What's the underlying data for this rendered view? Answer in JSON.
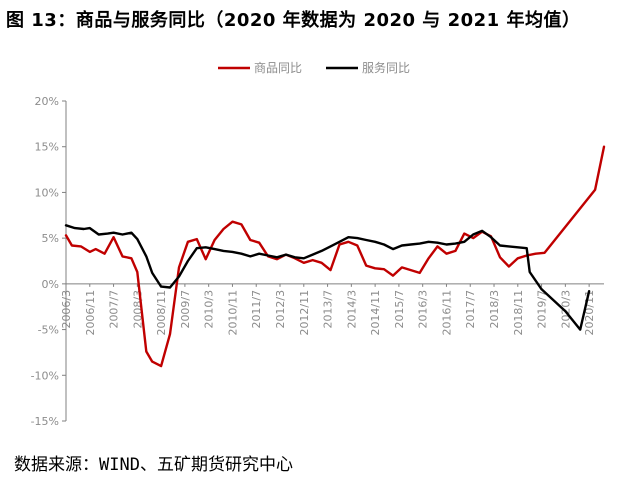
{
  "title": "图 13：商品与服务同比（2020 年数据为 2020 与 2021 年均值）",
  "source": "数据来源：WIND、五矿期货研究中心",
  "colors": {
    "goods": "#c00000",
    "services": "#000000",
    "axis": "#808080",
    "text": "#8c8c8c"
  },
  "chart_data": {
    "type": "line",
    "legend_position": "top-center",
    "grid": false,
    "ylim": [
      -15,
      20
    ],
    "yticks": [
      -15,
      -10,
      -5,
      0,
      5,
      10,
      15,
      20
    ],
    "ytick_labels": [
      "-15%",
      "-10%",
      "-5%",
      "0%",
      "5%",
      "10%",
      "15%",
      "20%"
    ],
    "xtick_labels": [
      "2006/3",
      "2006/11",
      "2007/7",
      "2008/3",
      "2008/11",
      "2009/7",
      "2010/3",
      "2010/11",
      "2011/7",
      "2012/3",
      "2012/11",
      "2013/7",
      "2014/3",
      "2014/11",
      "2015/7",
      "2016/3",
      "2016/11",
      "2017/7",
      "2018/3",
      "2018/11",
      "2019/7",
      "2020/3",
      "2020/11"
    ],
    "series": [
      {
        "name": "商品同比",
        "color": "#c00000",
        "points": [
          [
            "2006/3",
            5.3
          ],
          [
            "2006/5",
            4.2
          ],
          [
            "2006/8",
            4.1
          ],
          [
            "2006/11",
            3.5
          ],
          [
            "2007/1",
            3.8
          ],
          [
            "2007/4",
            3.3
          ],
          [
            "2007/7",
            5.1
          ],
          [
            "2007/10",
            3.0
          ],
          [
            "2008/1",
            2.8
          ],
          [
            "2008/3",
            1.3
          ],
          [
            "2008/6",
            -7.4
          ],
          [
            "2008/8",
            -8.5
          ],
          [
            "2008/11",
            -9.0
          ],
          [
            "2009/2",
            -5.5
          ],
          [
            "2009/5",
            1.8
          ],
          [
            "2009/8",
            4.6
          ],
          [
            "2009/11",
            4.9
          ],
          [
            "2010/2",
            2.7
          ],
          [
            "2010/5",
            4.8
          ],
          [
            "2010/8",
            6.0
          ],
          [
            "2010/11",
            6.8
          ],
          [
            "2011/2",
            6.5
          ],
          [
            "2011/5",
            4.8
          ],
          [
            "2011/8",
            4.5
          ],
          [
            "2011/11",
            3.0
          ],
          [
            "2012/2",
            2.7
          ],
          [
            "2012/5",
            3.2
          ],
          [
            "2012/8",
            2.8
          ],
          [
            "2012/11",
            2.3
          ],
          [
            "2013/2",
            2.6
          ],
          [
            "2013/5",
            2.3
          ],
          [
            "2013/8",
            1.5
          ],
          [
            "2013/11",
            4.3
          ],
          [
            "2014/2",
            4.6
          ],
          [
            "2014/5",
            4.2
          ],
          [
            "2014/8",
            2.0
          ],
          [
            "2014/11",
            1.7
          ],
          [
            "2015/2",
            1.6
          ],
          [
            "2015/5",
            0.9
          ],
          [
            "2015/8",
            1.8
          ],
          [
            "2015/11",
            1.5
          ],
          [
            "2016/2",
            1.2
          ],
          [
            "2016/5",
            2.8
          ],
          [
            "2016/8",
            4.1
          ],
          [
            "2016/11",
            3.3
          ],
          [
            "2017/2",
            3.6
          ],
          [
            "2017/5",
            5.5
          ],
          [
            "2017/8",
            5.0
          ],
          [
            "2017/11",
            5.7
          ],
          [
            "2018/2",
            5.2
          ],
          [
            "2018/5",
            2.9
          ],
          [
            "2018/8",
            1.9
          ],
          [
            "2018/11",
            2.8
          ],
          [
            "2019/2",
            3.1
          ],
          [
            "2019/5",
            3.3
          ],
          [
            "2019/8",
            3.4
          ],
          [
            "2021/1",
            10.3
          ],
          [
            "2021/4",
            15.0
          ]
        ]
      },
      {
        "name": "服务同比",
        "color": "#000000",
        "points": [
          [
            "2006/3",
            6.4
          ],
          [
            "2006/6",
            6.1
          ],
          [
            "2006/9",
            6.0
          ],
          [
            "2006/11",
            6.1
          ],
          [
            "2007/2",
            5.4
          ],
          [
            "2007/5",
            5.5
          ],
          [
            "2007/7",
            5.6
          ],
          [
            "2007/10",
            5.4
          ],
          [
            "2008/1",
            5.6
          ],
          [
            "2008/3",
            4.9
          ],
          [
            "2008/6",
            3.0
          ],
          [
            "2008/8",
            1.2
          ],
          [
            "2008/11",
            -0.3
          ],
          [
            "2009/2",
            -0.4
          ],
          [
            "2009/5",
            0.8
          ],
          [
            "2009/8",
            2.5
          ],
          [
            "2009/11",
            3.9
          ],
          [
            "2010/2",
            4.0
          ],
          [
            "2010/5",
            3.8
          ],
          [
            "2010/8",
            3.6
          ],
          [
            "2010/11",
            3.5
          ],
          [
            "2011/2",
            3.3
          ],
          [
            "2011/5",
            3.0
          ],
          [
            "2011/8",
            3.3
          ],
          [
            "2011/11",
            3.1
          ],
          [
            "2012/2",
            2.9
          ],
          [
            "2012/5",
            3.2
          ],
          [
            "2012/8",
            2.9
          ],
          [
            "2012/11",
            2.8
          ],
          [
            "2013/2",
            3.2
          ],
          [
            "2013/5",
            3.6
          ],
          [
            "2013/8",
            4.1
          ],
          [
            "2013/11",
            4.6
          ],
          [
            "2014/2",
            5.1
          ],
          [
            "2014/5",
            5.0
          ],
          [
            "2014/8",
            4.8
          ],
          [
            "2014/11",
            4.6
          ],
          [
            "2015/2",
            4.3
          ],
          [
            "2015/5",
            3.8
          ],
          [
            "2015/8",
            4.2
          ],
          [
            "2015/11",
            4.3
          ],
          [
            "2016/2",
            4.4
          ],
          [
            "2016/5",
            4.6
          ],
          [
            "2016/8",
            4.5
          ],
          [
            "2016/11",
            4.3
          ],
          [
            "2017/2",
            4.4
          ],
          [
            "2017/5",
            4.6
          ],
          [
            "2017/8",
            5.4
          ],
          [
            "2017/11",
            5.8
          ],
          [
            "2018/2",
            5.1
          ],
          [
            "2018/5",
            4.2
          ],
          [
            "2018/8",
            4.1
          ],
          [
            "2018/11",
            4.0
          ],
          [
            "2019/2",
            3.9
          ],
          [
            "2019/3",
            1.3
          ],
          [
            "2019/7",
            -0.6
          ],
          [
            "2020/3",
            -3.0
          ],
          [
            "2020/8",
            -5.0
          ],
          [
            "2020/11",
            -0.8
          ]
        ]
      }
    ]
  }
}
